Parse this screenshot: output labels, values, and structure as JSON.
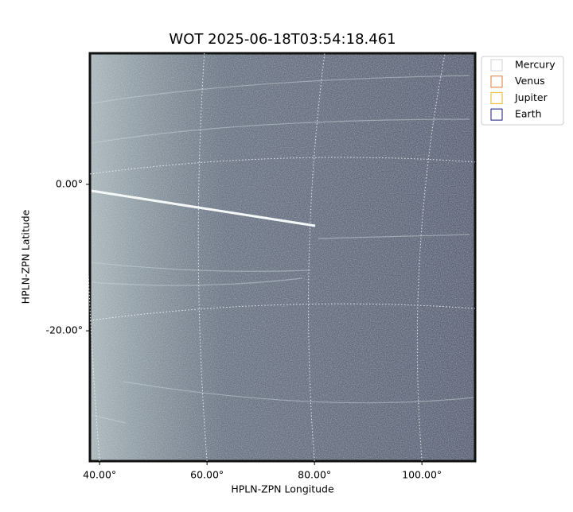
{
  "chart_data": {
    "type": "image",
    "title": "WOT 2025-06-18T03:54:18.461",
    "xlabel": "HPLN-ZPN Longitude",
    "ylabel": "HPLN-ZPN Latitude",
    "xlim": [
      38.2,
      109.9
    ],
    "ylim": [
      -37.8,
      17.9
    ],
    "xticks": [
      {
        "value": 40,
        "label": "40.00°"
      },
      {
        "value": 60,
        "label": "60.00°"
      },
      {
        "value": 80,
        "label": "80.00°"
      },
      {
        "value": 100,
        "label": "100.00°"
      }
    ],
    "yticks": [
      {
        "value": 0,
        "label": "0.00°"
      },
      {
        "value": -20,
        "label": "-20.00°"
      }
    ],
    "grid": true,
    "legend": "upper right outside",
    "series": [
      {
        "name": "Mercury",
        "color": "#d3d3d3"
      },
      {
        "name": "Venus",
        "color": "#e07b39"
      },
      {
        "name": "Jupiter",
        "color": "#e6b422"
      },
      {
        "name": "Earth",
        "color": "#1a1a80"
      }
    ]
  }
}
